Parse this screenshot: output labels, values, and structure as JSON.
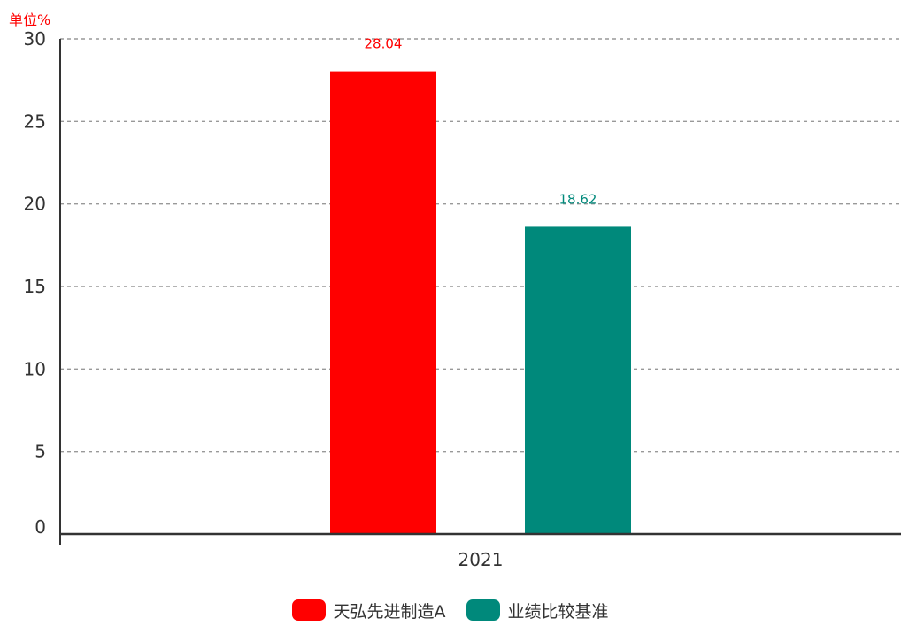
{
  "chart_data": {
    "type": "bar",
    "title": "",
    "unit_label": "单位%",
    "categories": [
      "2021"
    ],
    "series": [
      {
        "name": "天弘先进制造A",
        "values": [
          28.04
        ],
        "value_labels": [
          "28.04"
        ],
        "color": "#ff0000"
      },
      {
        "name": "业绩比较基准",
        "values": [
          18.62
        ],
        "value_labels": [
          "18.62"
        ],
        "color": "#00897b"
      }
    ],
    "y_ticks": [
      "0",
      "5",
      "10",
      "15",
      "20",
      "25",
      "30"
    ],
    "ylim": [
      0,
      30
    ],
    "grid": true,
    "legend_position": "bottom"
  },
  "colors": {
    "axis": "#333333",
    "grid": "#999999",
    "tick_text": "#333333",
    "unit_text": "#ff0000"
  }
}
